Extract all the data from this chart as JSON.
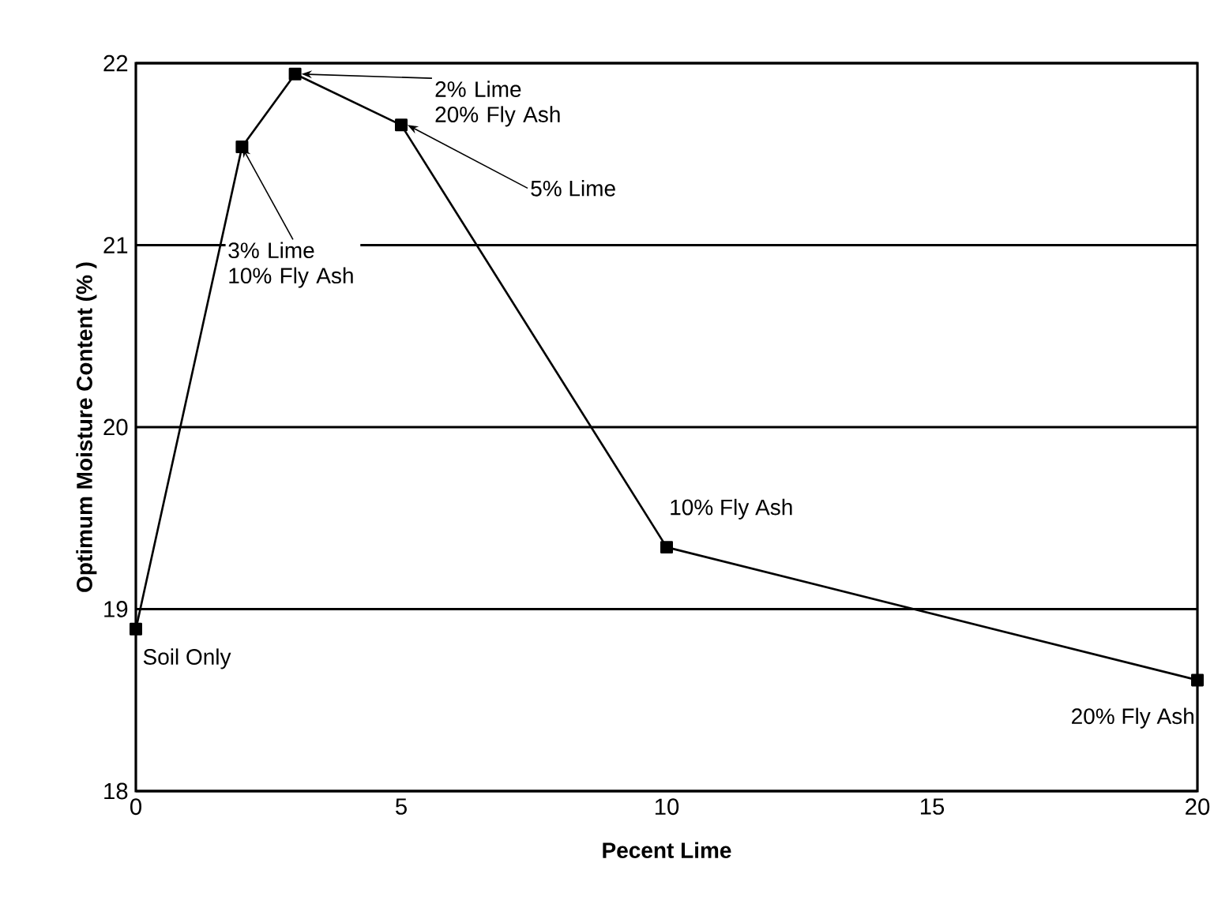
{
  "chart_data": {
    "type": "line",
    "xlabel": "Pecent Lime",
    "ylabel": "Optimum Moisture Content (% )",
    "x": [
      0,
      2,
      3,
      5,
      10,
      20
    ],
    "values": [
      18.89,
      21.54,
      21.94,
      21.66,
      19.34,
      18.61
    ],
    "color": "#000000",
    "marker": "square",
    "line_style": "solid",
    "grid": "y",
    "xlim": [
      0,
      20
    ],
    "ylim": [
      18,
      22
    ],
    "xticks": [
      0,
      5,
      10,
      15,
      20
    ],
    "yticks": [
      18,
      19,
      20,
      21,
      22
    ],
    "annotations": [
      {
        "text": "Soil Only",
        "x": 0,
        "y": 18.89
      },
      {
        "text": "3% Lime 10% Fly Ash",
        "x": 2,
        "y": 21.54
      },
      {
        "text": "2% Lime 20% Fly Ash",
        "x": 3,
        "y": 21.94
      },
      {
        "text": "5% Lime",
        "x": 5,
        "y": 21.66
      },
      {
        "text": "10% Fly Ash",
        "x": 10,
        "y": 19.34
      },
      {
        "text": "20% Fly Ash",
        "x": 20,
        "y": 18.61
      }
    ]
  }
}
